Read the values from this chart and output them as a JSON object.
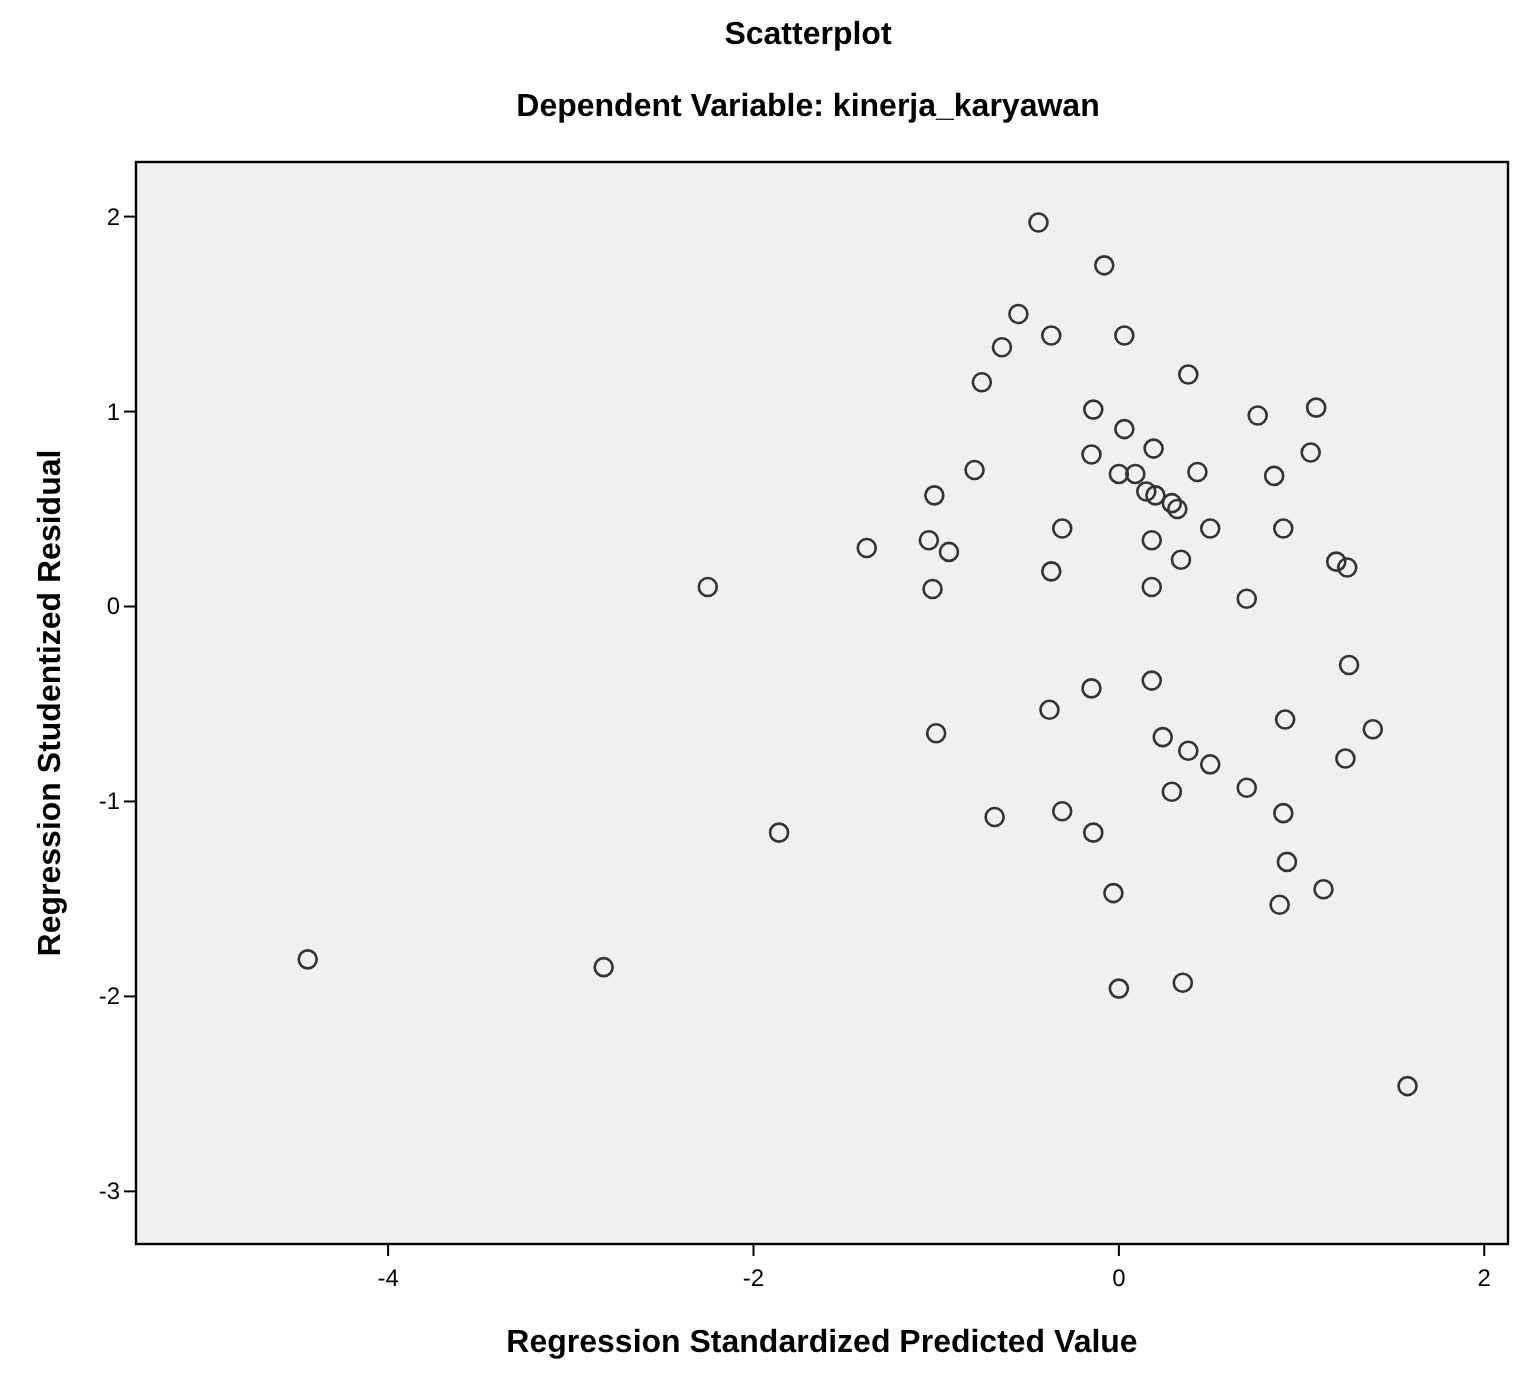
{
  "chart_data": {
    "type": "scatter",
    "title": "Scatterplot",
    "subtitle": "Dependent Variable: kinerja_karyawan",
    "xlabel": "Regression Standardized Predicted Value",
    "ylabel": "Regression Studentized Residual",
    "xlim": [
      -5.38,
      2.13
    ],
    "ylim": [
      -3.27,
      2.28
    ],
    "xticks": [
      -4,
      -2,
      0,
      2
    ],
    "yticks": [
      -3,
      -2,
      -1,
      0,
      1,
      2
    ],
    "marker": "circle",
    "grid": false,
    "series": [
      {
        "color": "#333333",
        "x": [
          -4.44,
          -2.82,
          -2.25,
          -1.86,
          -1.38,
          -0.44,
          -0.08,
          -0.55,
          -0.37,
          -0.64,
          0.03,
          -0.75,
          0.38,
          -0.14,
          0.76,
          1.08,
          0.03,
          -0.15,
          0.19,
          1.05,
          -0.79,
          0.0,
          0.09,
          0.43,
          0.85,
          -1.01,
          0.15,
          0.2,
          0.29,
          0.32,
          -0.31,
          0.5,
          0.9,
          -1.04,
          -0.93,
          0.18,
          0.34,
          1.19,
          1.25,
          -1.02,
          -0.37,
          0.18,
          0.7,
          1.26,
          -0.15,
          0.18,
          -0.38,
          -1.0,
          0.91,
          1.39,
          0.24,
          0.38,
          0.5,
          1.24,
          0.29,
          0.7,
          0.9,
          -0.68,
          -0.31,
          -0.14,
          0.92,
          -0.03,
          1.12,
          0.88,
          0.0,
          0.35,
          1.58
        ],
        "values": [
          -1.81,
          -1.85,
          0.1,
          -1.16,
          0.3,
          1.97,
          1.75,
          1.5,
          1.39,
          1.33,
          1.39,
          1.15,
          1.19,
          1.01,
          0.98,
          1.02,
          0.91,
          0.78,
          0.81,
          0.79,
          0.7,
          0.68,
          0.68,
          0.69,
          0.67,
          0.57,
          0.59,
          0.57,
          0.53,
          0.5,
          0.4,
          0.4,
          0.4,
          0.34,
          0.28,
          0.34,
          0.24,
          0.23,
          0.2,
          0.09,
          0.18,
          0.1,
          0.04,
          -0.3,
          -0.42,
          -0.38,
          -0.53,
          -0.65,
          -0.58,
          -0.63,
          -0.67,
          -0.74,
          -0.81,
          -0.78,
          -0.95,
          -0.93,
          -1.06,
          -1.08,
          -1.05,
          -1.16,
          -1.31,
          -1.47,
          -1.45,
          -1.53,
          -1.96,
          -1.93,
          -2.46
        ]
      }
    ]
  }
}
